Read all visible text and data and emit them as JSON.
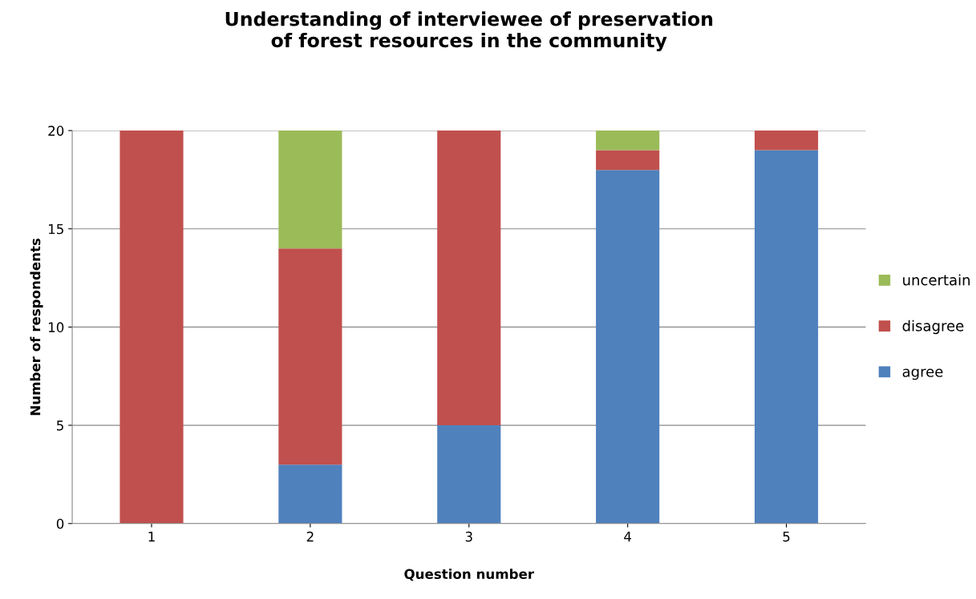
{
  "chart_data": {
    "type": "bar",
    "stacked": true,
    "title": "Understanding of interviewee of preservation\nof forest resources in the community",
    "xlabel": "Question number",
    "ylabel": "Number of respondents",
    "categories": [
      "1",
      "2",
      "3",
      "4",
      "5"
    ],
    "series": [
      {
        "name": "agree",
        "color": "#4f81bd",
        "values": [
          0,
          3,
          5,
          18,
          19
        ]
      },
      {
        "name": "disagree",
        "color": "#c0504d",
        "values": [
          20,
          11,
          15,
          1,
          1
        ]
      },
      {
        "name": "uncertain",
        "color": "#9bbb59",
        "values": [
          0,
          6,
          0,
          1,
          0
        ]
      }
    ],
    "ylim": [
      0,
      20
    ],
    "yticks": [
      0,
      5,
      10,
      15,
      20
    ],
    "grid": "y",
    "legend": "right"
  }
}
